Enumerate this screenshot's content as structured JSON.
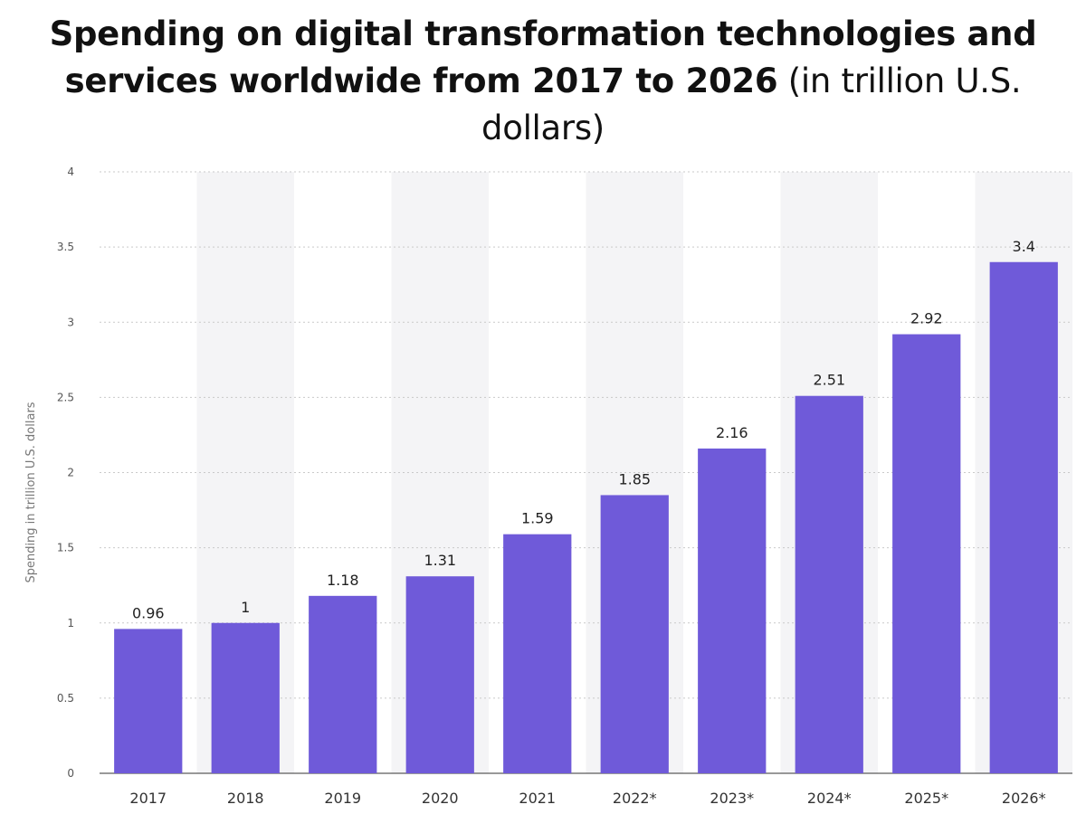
{
  "title": "Spending on digital transformation technologies and services worldwide from 2017 to 2026",
  "subtitle": "(in trillion U.S. dollars)",
  "colors": {
    "bar": "#6f5ad9",
    "band": "#f4f4f6",
    "grid": "#c9c9c9"
  },
  "chart_data": {
    "type": "bar",
    "categories": [
      "2017",
      "2018",
      "2019",
      "2020",
      "2021",
      "2022*",
      "2023*",
      "2024*",
      "2025*",
      "2026*"
    ],
    "values": [
      0.96,
      1,
      1.18,
      1.31,
      1.59,
      1.85,
      2.16,
      2.51,
      2.92,
      3.4
    ],
    "value_labels": [
      "0.96",
      "1",
      "1.18",
      "1.31",
      "1.59",
      "1.85",
      "2.16",
      "2.51",
      "2.92",
      "3.4"
    ],
    "yticks": [
      "0",
      "0.5",
      "1",
      "1.5",
      "2",
      "2.5",
      "3",
      "3.5",
      "4"
    ],
    "ylim": [
      0,
      4
    ],
    "xlabel": "",
    "ylabel": "Spending in trillion U.S. dollars",
    "grid": true,
    "legend": false
  }
}
